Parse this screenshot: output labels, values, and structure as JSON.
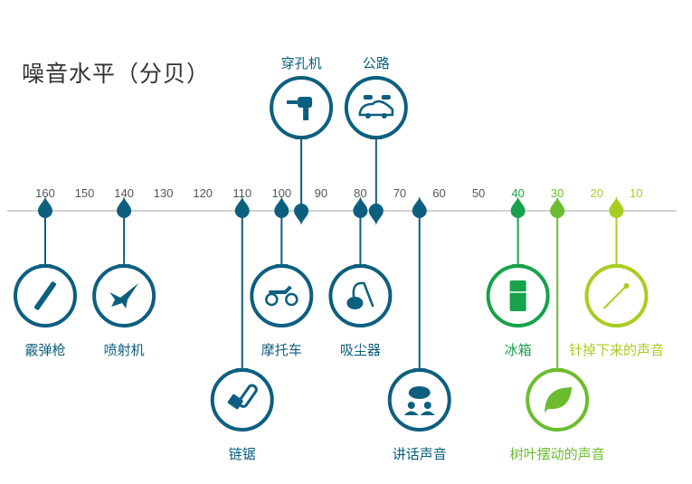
{
  "title": "噪音水平（分贝）",
  "colors": {
    "teal": "#0c5f7f",
    "axis": "#d0d0d0",
    "green40": "#17a24b",
    "green30": "#6bbd2f",
    "green20": "#a8cd22",
    "tick": "#555555"
  },
  "ticks": [
    {
      "value": 160,
      "label": "160"
    },
    {
      "value": 150,
      "label": "150"
    },
    {
      "value": 140,
      "label": "140"
    },
    {
      "value": 130,
      "label": "130"
    },
    {
      "value": 120,
      "label": "120"
    },
    {
      "value": 110,
      "label": "110"
    },
    {
      "value": 100,
      "label": "100"
    },
    {
      "value": 90,
      "label": "90"
    },
    {
      "value": 80,
      "label": "80"
    },
    {
      "value": 70,
      "label": "70"
    },
    {
      "value": 60,
      "label": "60"
    },
    {
      "value": 50,
      "label": "50"
    },
    {
      "value": 40,
      "label": "40",
      "color": "green40"
    },
    {
      "value": 30,
      "label": "30",
      "color": "green30"
    },
    {
      "value": 20,
      "label": "20",
      "color": "green20"
    },
    {
      "value": 10,
      "label": "10",
      "color": "green20"
    }
  ],
  "items": [
    {
      "label": "霰弹枪",
      "db": 160,
      "dir": "down",
      "row": 1,
      "icon": "shotgun-icon",
      "color": "teal"
    },
    {
      "label": "喷射机",
      "db": 140,
      "dir": "down",
      "row": 1,
      "icon": "jet-icon",
      "color": "teal"
    },
    {
      "label": "链锯",
      "db": 110,
      "dir": "down",
      "row": 2,
      "icon": "chainsaw-icon",
      "color": "teal"
    },
    {
      "label": "摩托车",
      "db": 100,
      "dir": "down",
      "row": 1,
      "icon": "motorcycle-icon",
      "color": "teal"
    },
    {
      "label": "穿孔机",
      "db": 95,
      "dir": "up",
      "row": 1,
      "icon": "drill-icon",
      "color": "teal"
    },
    {
      "label": "吸尘器",
      "db": 80,
      "dir": "down",
      "row": 1,
      "icon": "vacuum-icon",
      "color": "teal"
    },
    {
      "label": "公路",
      "db": 76,
      "dir": "up",
      "row": 1,
      "icon": "cars-icon",
      "color": "teal"
    },
    {
      "label": "讲话声音",
      "db": 65,
      "dir": "down",
      "row": 2,
      "icon": "speech-icon",
      "color": "teal"
    },
    {
      "label": "冰箱",
      "db": 40,
      "dir": "down",
      "row": 1,
      "icon": "fridge-icon",
      "color": "green40"
    },
    {
      "label": "树叶摆动的声音",
      "db": 30,
      "dir": "down",
      "row": 2,
      "icon": "leaf-icon",
      "color": "green30"
    },
    {
      "label": "针掉下来的声音",
      "db": 15,
      "dir": "down",
      "row": 1,
      "icon": "pin-icon",
      "color": "green20"
    }
  ]
}
